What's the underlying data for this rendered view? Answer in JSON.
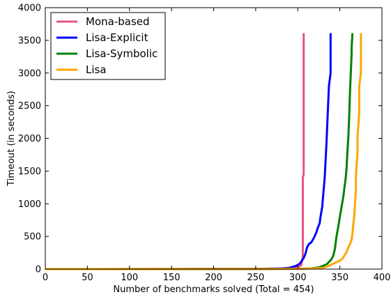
{
  "chart_data": {
    "type": "line",
    "title": "",
    "xlabel": "Number of benchmarks solved (Total = 454)",
    "ylabel": "Timeout (in seconds)",
    "xlim": [
      0,
      400
    ],
    "ylim": [
      0,
      4000
    ],
    "x_ticks": [
      "0",
      "50",
      "100",
      "150",
      "200",
      "250",
      "300",
      "350",
      "400"
    ],
    "y_ticks": [
      "0",
      "500",
      "1000",
      "1500",
      "2000",
      "2500",
      "3000",
      "3500",
      "4000"
    ],
    "grid": false,
    "legend_position": "top-left",
    "series": [
      {
        "name": "Mona-based",
        "color": "#e75480",
        "points": [
          [
            0,
            0
          ],
          [
            200,
            2
          ],
          [
            260,
            6
          ],
          [
            290,
            12
          ],
          [
            300,
            25
          ],
          [
            304,
            60
          ],
          [
            305,
            120
          ],
          [
            306,
            200
          ],
          [
            306,
            1400
          ],
          [
            307,
            1450
          ],
          [
            307,
            3610
          ]
        ]
      },
      {
        "name": "Lisa-Explicit",
        "color": "#0000ff",
        "points": [
          [
            0,
            0
          ],
          [
            200,
            2
          ],
          [
            260,
            5
          ],
          [
            280,
            10
          ],
          [
            290,
            20
          ],
          [
            298,
            50
          ],
          [
            302,
            80
          ],
          [
            305,
            130
          ],
          [
            307,
            170
          ],
          [
            309,
            230
          ],
          [
            311,
            330
          ],
          [
            313,
            380
          ],
          [
            316,
            410
          ],
          [
            318,
            450
          ],
          [
            320,
            500
          ],
          [
            322,
            560
          ],
          [
            324,
            640
          ],
          [
            326,
            700
          ],
          [
            327,
            800
          ],
          [
            329,
            950
          ],
          [
            330,
            1100
          ],
          [
            331,
            1250
          ],
          [
            332,
            1400
          ],
          [
            333,
            1650
          ],
          [
            334,
            1900
          ],
          [
            335,
            2200
          ],
          [
            336,
            2500
          ],
          [
            337,
            2800
          ],
          [
            339,
            3000
          ],
          [
            339,
            3100
          ],
          [
            339,
            3610
          ]
        ]
      },
      {
        "name": "Lisa-Symbolic",
        "color": "#008000",
        "points": [
          [
            0,
            0
          ],
          [
            250,
            2
          ],
          [
            300,
            5
          ],
          [
            315,
            10
          ],
          [
            325,
            25
          ],
          [
            330,
            50
          ],
          [
            335,
            80
          ],
          [
            337,
            110
          ],
          [
            340,
            150
          ],
          [
            342,
            200
          ],
          [
            344,
            300
          ],
          [
            345,
            400
          ],
          [
            346,
            500
          ],
          [
            347,
            570
          ],
          [
            348,
            640
          ],
          [
            349,
            720
          ],
          [
            350,
            800
          ],
          [
            352,
            950
          ],
          [
            354,
            1100
          ],
          [
            356,
            1300
          ],
          [
            357,
            1400
          ],
          [
            358,
            1550
          ],
          [
            359,
            1800
          ],
          [
            360,
            2000
          ],
          [
            361,
            2300
          ],
          [
            362,
            2700
          ],
          [
            363,
            3000
          ],
          [
            364,
            3300
          ],
          [
            364,
            3400
          ],
          [
            365,
            3610
          ]
        ]
      },
      {
        "name": "Lisa",
        "color": "#ffa500",
        "points": [
          [
            0,
            0
          ],
          [
            250,
            2
          ],
          [
            300,
            5
          ],
          [
            320,
            10
          ],
          [
            330,
            20
          ],
          [
            335,
            40
          ],
          [
            340,
            70
          ],
          [
            345,
            100
          ],
          [
            350,
            130
          ],
          [
            353,
            160
          ],
          [
            355,
            200
          ],
          [
            358,
            260
          ],
          [
            360,
            330
          ],
          [
            362,
            380
          ],
          [
            364,
            450
          ],
          [
            365,
            550
          ],
          [
            366,
            680
          ],
          [
            367,
            800
          ],
          [
            368,
            1000
          ],
          [
            369,
            1200
          ],
          [
            369,
            1400
          ],
          [
            370,
            1600
          ],
          [
            371,
            1800
          ],
          [
            371,
            2050
          ],
          [
            372,
            2200
          ],
          [
            373,
            2400
          ],
          [
            373,
            2800
          ],
          [
            374,
            2900
          ],
          [
            375,
            3000
          ],
          [
            375,
            3610
          ]
        ]
      }
    ]
  }
}
